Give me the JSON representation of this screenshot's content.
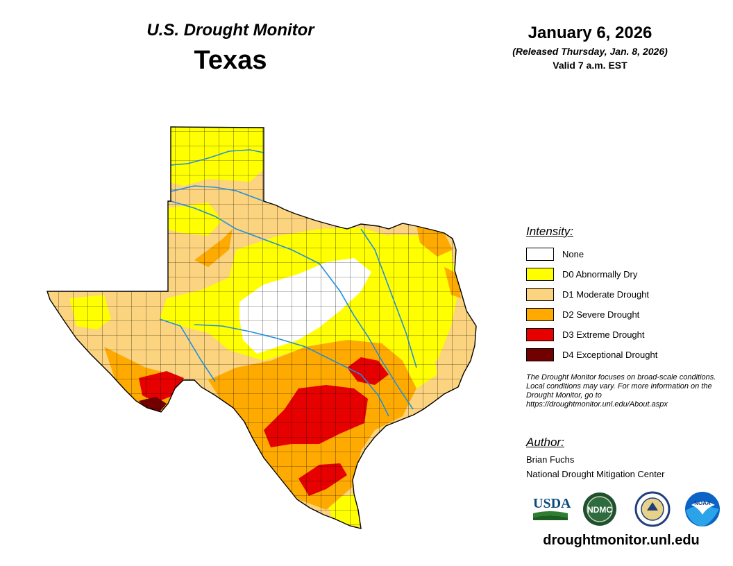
{
  "header": {
    "product": "U.S. Drought Monitor",
    "region": "Texas",
    "date": "January 6, 2026",
    "release": "(Released Thursday, Jan. 8, 2026)",
    "valid": "Valid 7 a.m. EST"
  },
  "legend": {
    "title": "Intensity:",
    "items": [
      {
        "label": "None",
        "color": "#ffffff"
      },
      {
        "label": "D0 Abnormally Dry",
        "color": "#ffff00"
      },
      {
        "label": "D1 Moderate Drought",
        "color": "#fcd37f"
      },
      {
        "label": "D2 Severe Drought",
        "color": "#ffaa00"
      },
      {
        "label": "D3 Extreme Drought",
        "color": "#e60000"
      },
      {
        "label": "D4 Exceptional Drought",
        "color": "#730000"
      }
    ]
  },
  "disclaimer": "The Drought Monitor focuses on broad-scale conditions. Local conditions may vary. For more information on the Drought Monitor, go to https://droughtmonitor.unl.edu/About.aspx",
  "author": {
    "title": "Author:",
    "name": "Brian Fuchs",
    "org": "National Drought Mitigation Center"
  },
  "logos": [
    {
      "text": "USDA",
      "icon": "usda-logo"
    },
    {
      "text": "NDMC",
      "icon": "ndmc-logo"
    },
    {
      "text": "",
      "icon": "commerce-seal"
    },
    {
      "text": "NOAA",
      "icon": "noaa-logo"
    }
  ],
  "footer": {
    "url": "droughtmonitor.unl.edu"
  },
  "colors": {
    "river": "#1f8fe0",
    "county_line": "#000000"
  }
}
